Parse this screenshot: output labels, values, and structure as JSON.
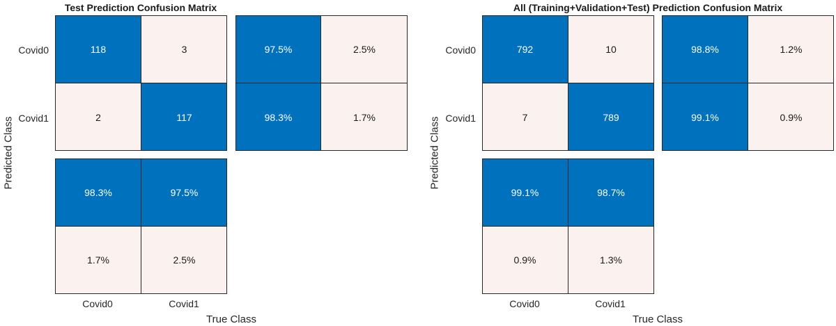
{
  "chart_data": [
    {
      "type": "heatmap",
      "title": "Test Prediction Confusion Matrix",
      "xlabel": "True Class",
      "ylabel": "Predicted Class",
      "classes": [
        "Covid0",
        "Covid1"
      ],
      "matrix": [
        [
          "118",
          "3"
        ],
        [
          "2",
          "117"
        ]
      ],
      "row_summary": [
        [
          "97.5%",
          "2.5%"
        ],
        [
          "98.3%",
          "1.7%"
        ]
      ],
      "column_summary": [
        [
          "98.3%",
          "97.5%"
        ],
        [
          "1.7%",
          "2.5%"
        ]
      ],
      "dark_color": "#0072bd",
      "light_color": "#fbf1ee"
    },
    {
      "type": "heatmap",
      "title": "All (Training+Validation+Test) Prediction Confusion Matrix",
      "xlabel": "True Class",
      "ylabel": "Predicted Class",
      "classes": [
        "Covid0",
        "Covid1"
      ],
      "matrix": [
        [
          "792",
          "10"
        ],
        [
          "7",
          "789"
        ]
      ],
      "row_summary": [
        [
          "98.8%",
          "1.2%"
        ],
        [
          "99.1%",
          "0.9%"
        ]
      ],
      "column_summary": [
        [
          "99.1%",
          "98.7%"
        ],
        [
          "0.9%",
          "1.3%"
        ]
      ],
      "dark_color": "#0072bd",
      "light_color": "#fbf1ee"
    }
  ]
}
